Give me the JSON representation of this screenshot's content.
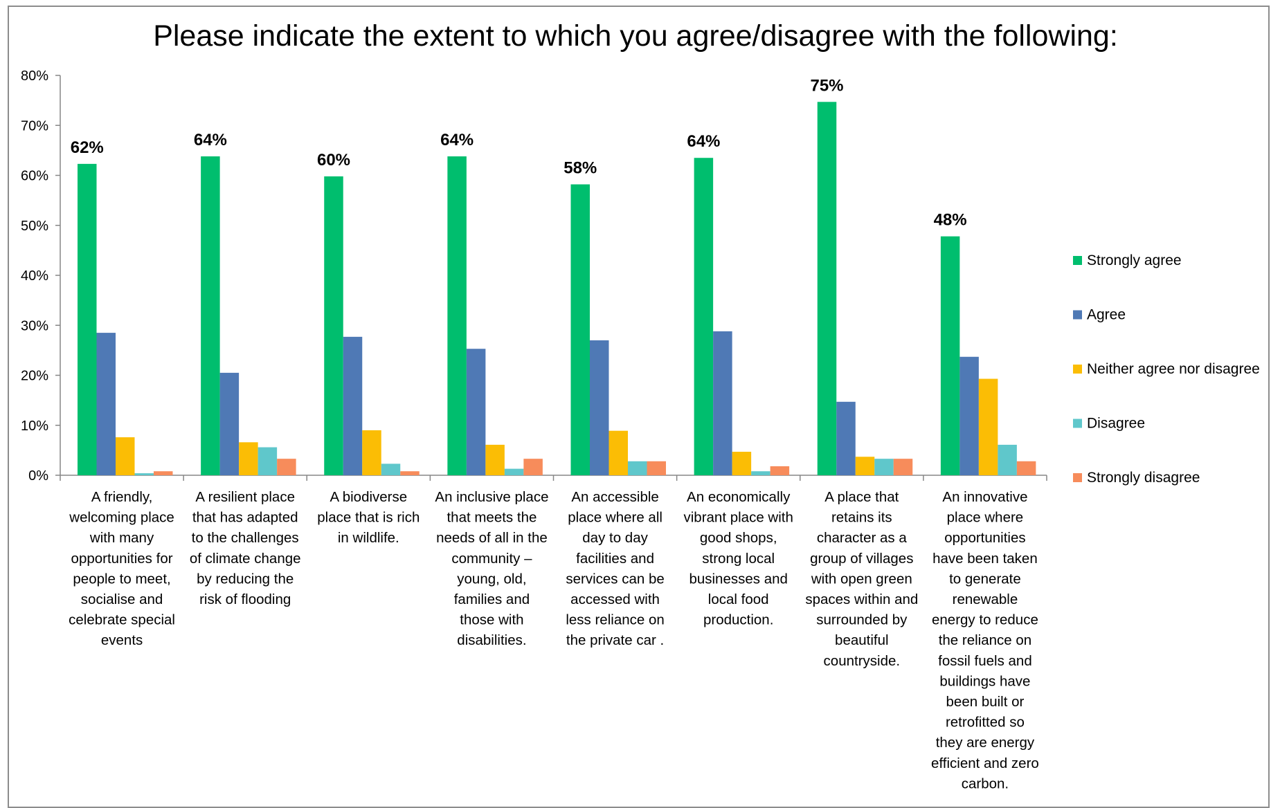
{
  "chart_data": {
    "type": "bar",
    "title": "Please indicate the extent to which you agree/disagree with the following:",
    "xlabel": "",
    "ylabel": "",
    "ylim": [
      0,
      80
    ],
    "yticks": [
      "0%",
      "10%",
      "20%",
      "30%",
      "40%",
      "50%",
      "60%",
      "70%",
      "80%"
    ],
    "legend_position": "right",
    "grid": false,
    "categories": [
      [
        "A friendly,",
        "welcoming place",
        "with many",
        "opportunities for",
        "people to meet,",
        "socialise and",
        "celebrate special",
        "events"
      ],
      [
        "A resilient place",
        "that has adapted",
        "to the challenges",
        "of climate change",
        "by reducing the",
        "risk of flooding"
      ],
      [
        "A biodiverse",
        "place that is rich",
        "in wildlife."
      ],
      [
        "An inclusive place",
        "that meets the",
        "needs of all in the",
        "community –",
        "young, old,",
        "families and",
        "those with",
        "disabilities."
      ],
      [
        "An accessible",
        "place where all",
        "day to day",
        "facilities and",
        "services can be",
        "accessed with",
        "less reliance on",
        "the private car ."
      ],
      [
        "An economically",
        "vibrant place with",
        "good shops,",
        "strong local",
        "businesses and",
        "local food",
        "production."
      ],
      [
        "A place that",
        "retains its",
        "character as a",
        "group of villages",
        "with open green",
        "spaces within and",
        "surrounded by",
        "beautiful",
        "countryside."
      ],
      [
        "An innovative",
        "place where",
        "opportunities",
        "have been taken",
        "to generate",
        "renewable",
        "energy to reduce",
        "the reliance on",
        "fossil fuels and",
        "buildings have",
        "been built or",
        "retrofitted so",
        "they are energy",
        "efficient and zero",
        "carbon."
      ]
    ],
    "series": [
      {
        "name": "Strongly agree",
        "color": "#00be6e",
        "values": [
          62.3,
          63.8,
          59.8,
          63.8,
          58.2,
          63.5,
          74.7,
          47.8
        ]
      },
      {
        "name": "Agree",
        "color": "#4f79b5",
        "values": [
          28.5,
          20.5,
          27.7,
          25.3,
          27.0,
          28.8,
          14.7,
          23.7
        ]
      },
      {
        "name": "Neither agree nor disagree",
        "color": "#fbbd05",
        "values": [
          7.6,
          6.6,
          9.0,
          6.1,
          8.9,
          4.7,
          3.7,
          19.3
        ]
      },
      {
        "name": "Disagree",
        "color": "#5fc7cb",
        "values": [
          0.4,
          5.6,
          2.3,
          1.3,
          2.8,
          0.8,
          3.3,
          6.1
        ]
      },
      {
        "name": "Strongly disagree",
        "color": "#f78c5b",
        "values": [
          0.8,
          3.3,
          0.8,
          3.3,
          2.8,
          1.8,
          3.3,
          2.8
        ]
      }
    ],
    "data_labels": [
      "62%",
      "64%",
      "60%",
      "64%",
      "58%",
      "64%",
      "75%",
      "48%"
    ]
  }
}
